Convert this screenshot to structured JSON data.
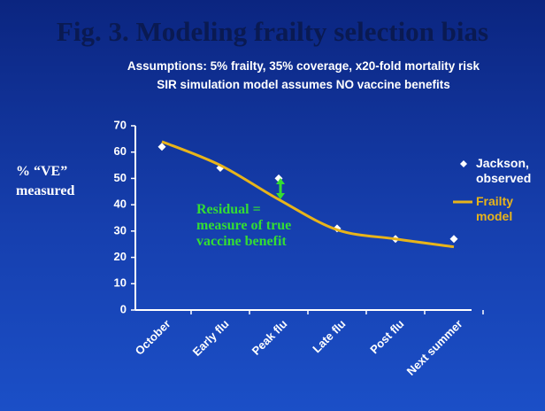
{
  "chart_data": {
    "type": "line",
    "title": "Fig. 3.  Modeling frailty selection bias",
    "subtitle": [
      "Assumptions: 5% frailty, 35% coverage, x20-fold mortality risk",
      "SIR simulation model assumes NO vaccine benefits"
    ],
    "y_label": "% “VE” measured",
    "annotation": "Residual = measure of true vaccine benefit",
    "categories": [
      "October",
      "Early flu",
      "Peak flu",
      "Late flu",
      "Post flu",
      "Next summer"
    ],
    "series": [
      {
        "name": "Jackson, observed",
        "color": "#ffffff",
        "mark": "diamond",
        "values": [
          62,
          54,
          50,
          31,
          27,
          27
        ]
      },
      {
        "name": "Frailty model",
        "color": "#e8b41a",
        "mark": "line",
        "values": [
          64,
          55,
          42,
          30.5,
          27,
          24
        ]
      }
    ],
    "ylim": [
      0,
      70
    ],
    "yticks": [
      0,
      10,
      20,
      30,
      40,
      50,
      60,
      70
    ]
  }
}
